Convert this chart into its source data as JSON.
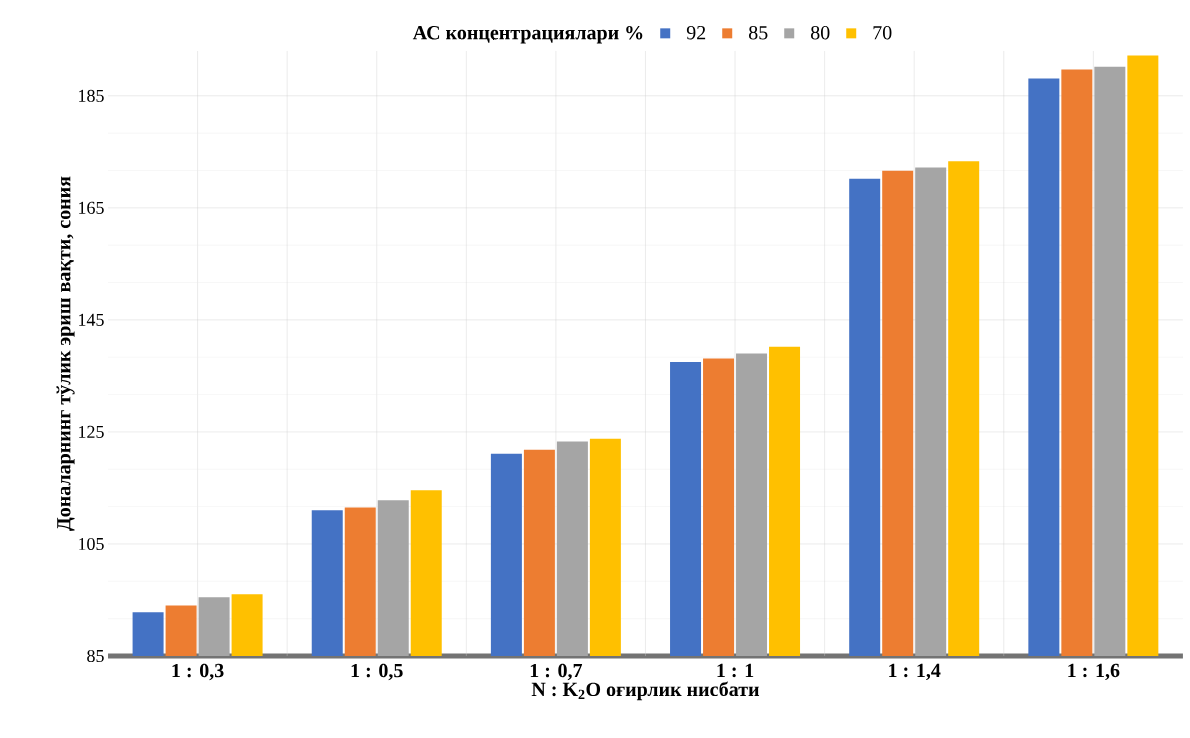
{
  "chart_data": {
    "type": "bar",
    "xlabel": "N : K$_{2}$O оғирлик нисбати",
    "ylabel": "Доналарнинг тўлик эриш вақти, сония",
    "legend_title": "АС концентрациялари %",
    "categories": [
      "1 : 0,3",
      "1 : 0,5",
      "1 : 0,7",
      "1 : 1",
      "1 : 1,4",
      "1 : 1,6"
    ],
    "series": [
      {
        "name": "92",
        "color": "#4472c4",
        "values": [
          92.8,
          111.0,
          121.1,
          137.5,
          170.2,
          188.1
        ]
      },
      {
        "name": "85",
        "color": "#ed7d31",
        "values": [
          94.0,
          111.5,
          121.8,
          138.1,
          171.6,
          189.7
        ]
      },
      {
        "name": "80",
        "color": "#a5a5a5",
        "values": [
          95.5,
          112.8,
          123.3,
          139.0,
          172.2,
          190.2
        ]
      },
      {
        "name": "70",
        "color": "#ffc000",
        "values": [
          96.0,
          114.6,
          123.8,
          140.2,
          173.3,
          192.2
        ]
      }
    ],
    "ylim": [
      85,
      193
    ],
    "yticks": [
      85,
      105,
      125,
      145,
      165,
      185
    ],
    "grid": true,
    "legend": "top"
  }
}
